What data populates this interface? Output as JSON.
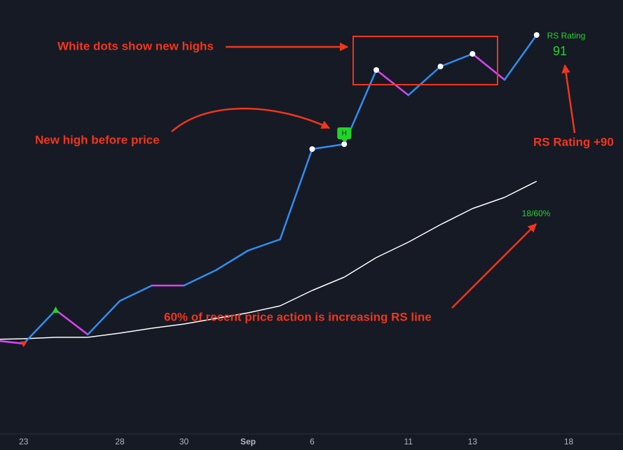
{
  "chart_data": {
    "type": "line",
    "categories": [
      null,
      "23",
      null,
      null,
      "28",
      null,
      "30",
      null,
      "Sep",
      null,
      "6",
      null,
      null,
      "11",
      null,
      "13",
      null,
      null,
      "18"
    ],
    "ylim": [
      0,
      620
    ],
    "series": [
      {
        "up_color": "#2f8ff0",
        "down_color": "#d946ef",
        "values": [
          134,
          129,
          177,
          142,
          190,
          212,
          212,
          234,
          262,
          278,
          407,
          414,
          520,
          484,
          525,
          543,
          506,
          570,
          null
        ],
        "markers": [
          null,
          "triangle-down",
          "triangle-up",
          null,
          null,
          null,
          null,
          null,
          null,
          null,
          "dot",
          "dot",
          "dot",
          null,
          "dot",
          "dot",
          null,
          "dot",
          null
        ]
      },
      {
        "color": "#ffffff",
        "values": [
          135,
          136,
          138,
          138,
          144,
          151,
          157,
          165,
          173,
          183,
          205,
          224,
          252,
          274,
          299,
          322,
          338,
          361,
          null
        ]
      }
    ],
    "badge": "H",
    "rs_label": "RS Rating",
    "rs_rating": 91,
    "ratio_label": "18/60%",
    "annotations": [
      "White dots show new highs",
      "New high before price",
      "RS Rating +90",
      "60% of recent price action is increasing RS line"
    ]
  }
}
